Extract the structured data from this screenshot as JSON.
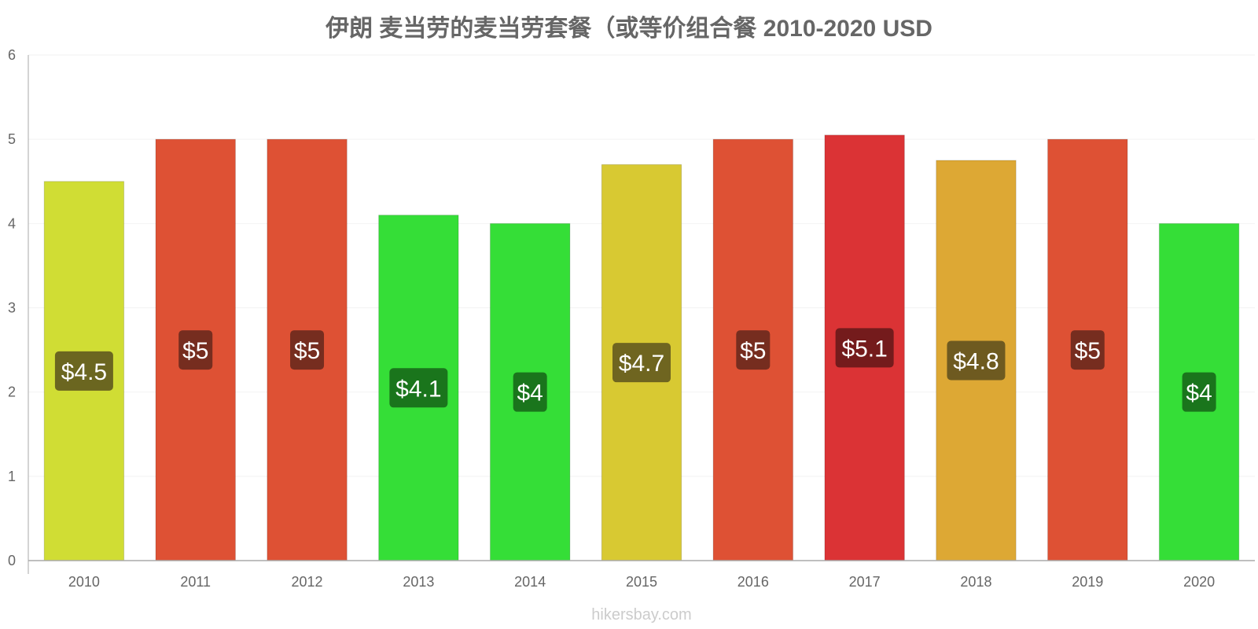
{
  "chart_data": {
    "type": "bar",
    "title": "伊朗 麦当劳的麦当劳套餐（或等价组合餐 2010-2020 USD",
    "categories": [
      "2010",
      "2011",
      "2012",
      "2013",
      "2014",
      "2015",
      "2016",
      "2017",
      "2018",
      "2019",
      "2020"
    ],
    "values": [
      4.5,
      5.0,
      5.0,
      4.1,
      4.0,
      4.7,
      5.0,
      5.05,
      4.75,
      5.0,
      4.0
    ],
    "data_labels": [
      "$4.5",
      "$5",
      "$5",
      "$4.1",
      "$4",
      "$4.7",
      "$5",
      "$5.1",
      "$4.8",
      "$5",
      "$4"
    ],
    "bar_colors": [
      "#d0dd34",
      "#de5134",
      "#de5134",
      "#35de37",
      "#35de37",
      "#d8c932",
      "#de5134",
      "#db3335",
      "#dda834",
      "#de5134",
      "#35de37"
    ],
    "label_bg_colors": [
      "#6b6620",
      "#762d1f",
      "#762d1f",
      "#1a751c",
      "#1a751c",
      "#6f6520",
      "#762d1f",
      "#741b1c",
      "#6e5a20",
      "#762d1f",
      "#1a751c"
    ],
    "ylim": [
      0,
      6
    ],
    "yticks": [
      0,
      1,
      2,
      3,
      4,
      5,
      6
    ],
    "xlabel": "",
    "ylabel": "",
    "grid": true,
    "legend": "none"
  },
  "watermark": "hikersbay.com"
}
